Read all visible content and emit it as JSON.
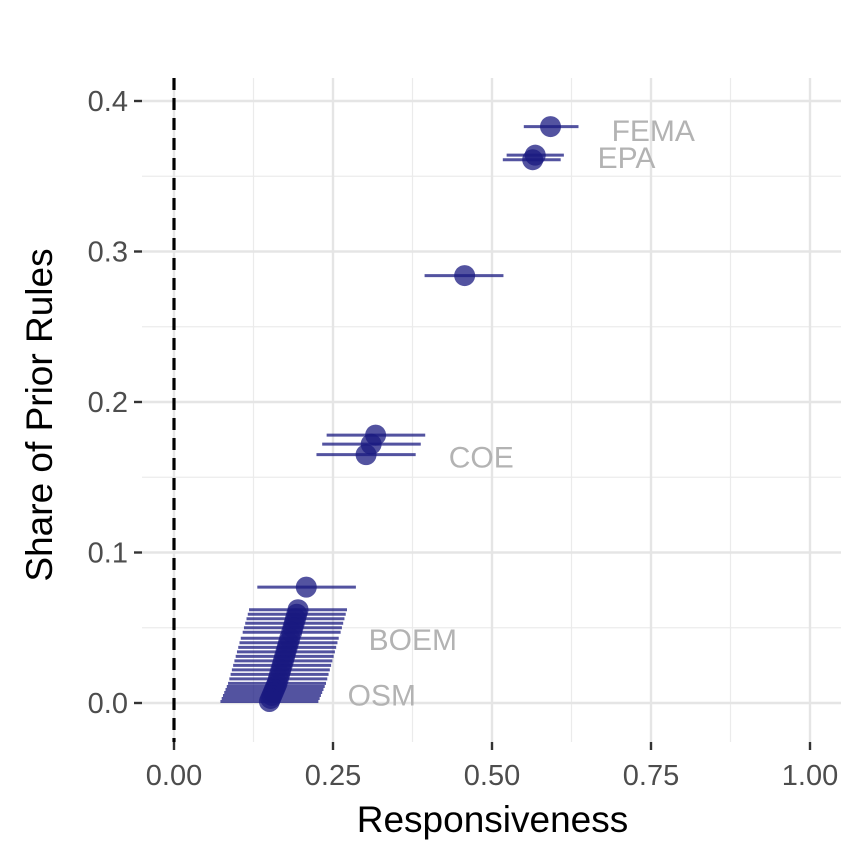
{
  "chart_data": {
    "type": "scatter",
    "xlabel": "Responsiveness",
    "ylabel": "Share of Prior Rules",
    "xlim": [
      0,
      1
    ],
    "ylim": [
      -0.025,
      0.41
    ],
    "x_ticks": [
      0,
      0.25,
      0.5,
      0.75,
      1
    ],
    "x_tick_labels": [
      "0.00",
      "0.25",
      "0.50",
      "0.75",
      "1.00"
    ],
    "y_ticks": [
      0,
      0.1,
      0.2,
      0.3,
      0.4
    ],
    "y_tick_labels": [
      "0.0",
      "0.1",
      "0.2",
      "0.3",
      "0.4"
    ],
    "grid": true,
    "reference_line": {
      "x": 0,
      "style": "dashed",
      "color": "#000000"
    },
    "point_color": "#1a1a80",
    "point_alpha": 0.75,
    "points": [
      {
        "x": 0.592,
        "y": 0.383,
        "xmin": 0.55,
        "xmax": 0.636
      },
      {
        "x": 0.568,
        "y": 0.364,
        "xmin": 0.523,
        "xmax": 0.613
      },
      {
        "x": 0.564,
        "y": 0.361,
        "xmin": 0.517,
        "xmax": 0.608
      },
      {
        "x": 0.457,
        "y": 0.284,
        "xmin": 0.394,
        "xmax": 0.518
      },
      {
        "x": 0.317,
        "y": 0.178,
        "xmin": 0.24,
        "xmax": 0.395
      },
      {
        "x": 0.31,
        "y": 0.172,
        "xmin": 0.233,
        "xmax": 0.388
      },
      {
        "x": 0.302,
        "y": 0.165,
        "xmin": 0.224,
        "xmax": 0.38
      },
      {
        "x": 0.208,
        "y": 0.077,
        "xmin": 0.131,
        "xmax": 0.286
      },
      {
        "x": 0.195,
        "y": 0.062,
        "xmin": 0.118,
        "xmax": 0.272
      },
      {
        "x": 0.193,
        "y": 0.059,
        "xmin": 0.116,
        "xmax": 0.27
      },
      {
        "x": 0.191,
        "y": 0.056,
        "xmin": 0.114,
        "xmax": 0.268
      },
      {
        "x": 0.189,
        "y": 0.053,
        "xmin": 0.112,
        "xmax": 0.266
      },
      {
        "x": 0.187,
        "y": 0.05,
        "xmin": 0.11,
        "xmax": 0.264
      },
      {
        "x": 0.185,
        "y": 0.047,
        "xmin": 0.108,
        "xmax": 0.262
      },
      {
        "x": 0.182,
        "y": 0.043,
        "xmin": 0.105,
        "xmax": 0.259
      },
      {
        "x": 0.18,
        "y": 0.04,
        "xmin": 0.103,
        "xmax": 0.257
      },
      {
        "x": 0.178,
        "y": 0.037,
        "xmin": 0.101,
        "xmax": 0.255
      },
      {
        "x": 0.176,
        "y": 0.034,
        "xmin": 0.099,
        "xmax": 0.253
      },
      {
        "x": 0.174,
        "y": 0.031,
        "xmin": 0.097,
        "xmax": 0.251
      },
      {
        "x": 0.172,
        "y": 0.028,
        "xmin": 0.095,
        "xmax": 0.249
      },
      {
        "x": 0.17,
        "y": 0.025,
        "xmin": 0.093,
        "xmax": 0.247
      },
      {
        "x": 0.168,
        "y": 0.022,
        "xmin": 0.091,
        "xmax": 0.245
      },
      {
        "x": 0.166,
        "y": 0.019,
        "xmin": 0.089,
        "xmax": 0.243
      },
      {
        "x": 0.164,
        "y": 0.016,
        "xmin": 0.087,
        "xmax": 0.241
      },
      {
        "x": 0.162,
        "y": 0.013,
        "xmin": 0.085,
        "xmax": 0.239
      },
      {
        "x": 0.16,
        "y": 0.011,
        "xmin": 0.083,
        "xmax": 0.237
      },
      {
        "x": 0.158,
        "y": 0.009,
        "xmin": 0.081,
        "xmax": 0.235
      },
      {
        "x": 0.156,
        "y": 0.007,
        "xmin": 0.079,
        "xmax": 0.233
      },
      {
        "x": 0.154,
        "y": 0.005,
        "xmin": 0.077,
        "xmax": 0.231
      },
      {
        "x": 0.152,
        "y": 0.003,
        "xmin": 0.075,
        "xmax": 0.229
      },
      {
        "x": 0.15,
        "y": 0.001,
        "xmin": 0.073,
        "xmax": 0.227
      }
    ],
    "annotations": [
      {
        "text": "FEMA",
        "x": 0.688,
        "y": 0.38
      },
      {
        "text": "EPA",
        "x": 0.666,
        "y": 0.362
      },
      {
        "text": "COE",
        "x": 0.432,
        "y": 0.163
      },
      {
        "text": "BOEM",
        "x": 0.306,
        "y": 0.042
      },
      {
        "text": "OSM",
        "x": 0.273,
        "y": 0.005
      }
    ]
  }
}
